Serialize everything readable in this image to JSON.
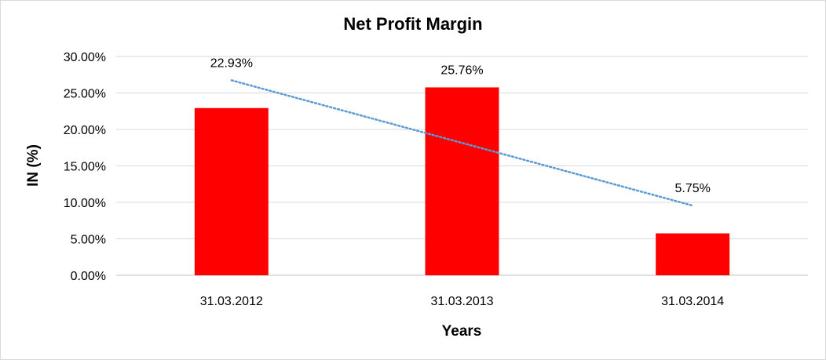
{
  "chart_data": {
    "type": "bar",
    "title": "Net Profit Margin",
    "xlabel": "Years",
    "ylabel": "IN (%)",
    "categories": [
      "31.03.2012",
      "31.03.2013",
      "31.03.2014"
    ],
    "series": [
      {
        "values": [
          22.93,
          25.76,
          5.75
        ],
        "data_labels": [
          "22.93%",
          "25.76%",
          "5.75%"
        ],
        "color": "#ff0000"
      }
    ],
    "ylim": [
      0,
      30
    ],
    "yticks": [
      0,
      5,
      10,
      15,
      20,
      25,
      30
    ],
    "ytick_labels": [
      "0.00%",
      "5.00%",
      "10.00%",
      "15.00%",
      "20.00%",
      "25.00%",
      "30.00%"
    ],
    "grid": true,
    "legend": "none",
    "trendline": {
      "type": "linear",
      "style": "dotted",
      "color": "#5b9bd5"
    }
  }
}
